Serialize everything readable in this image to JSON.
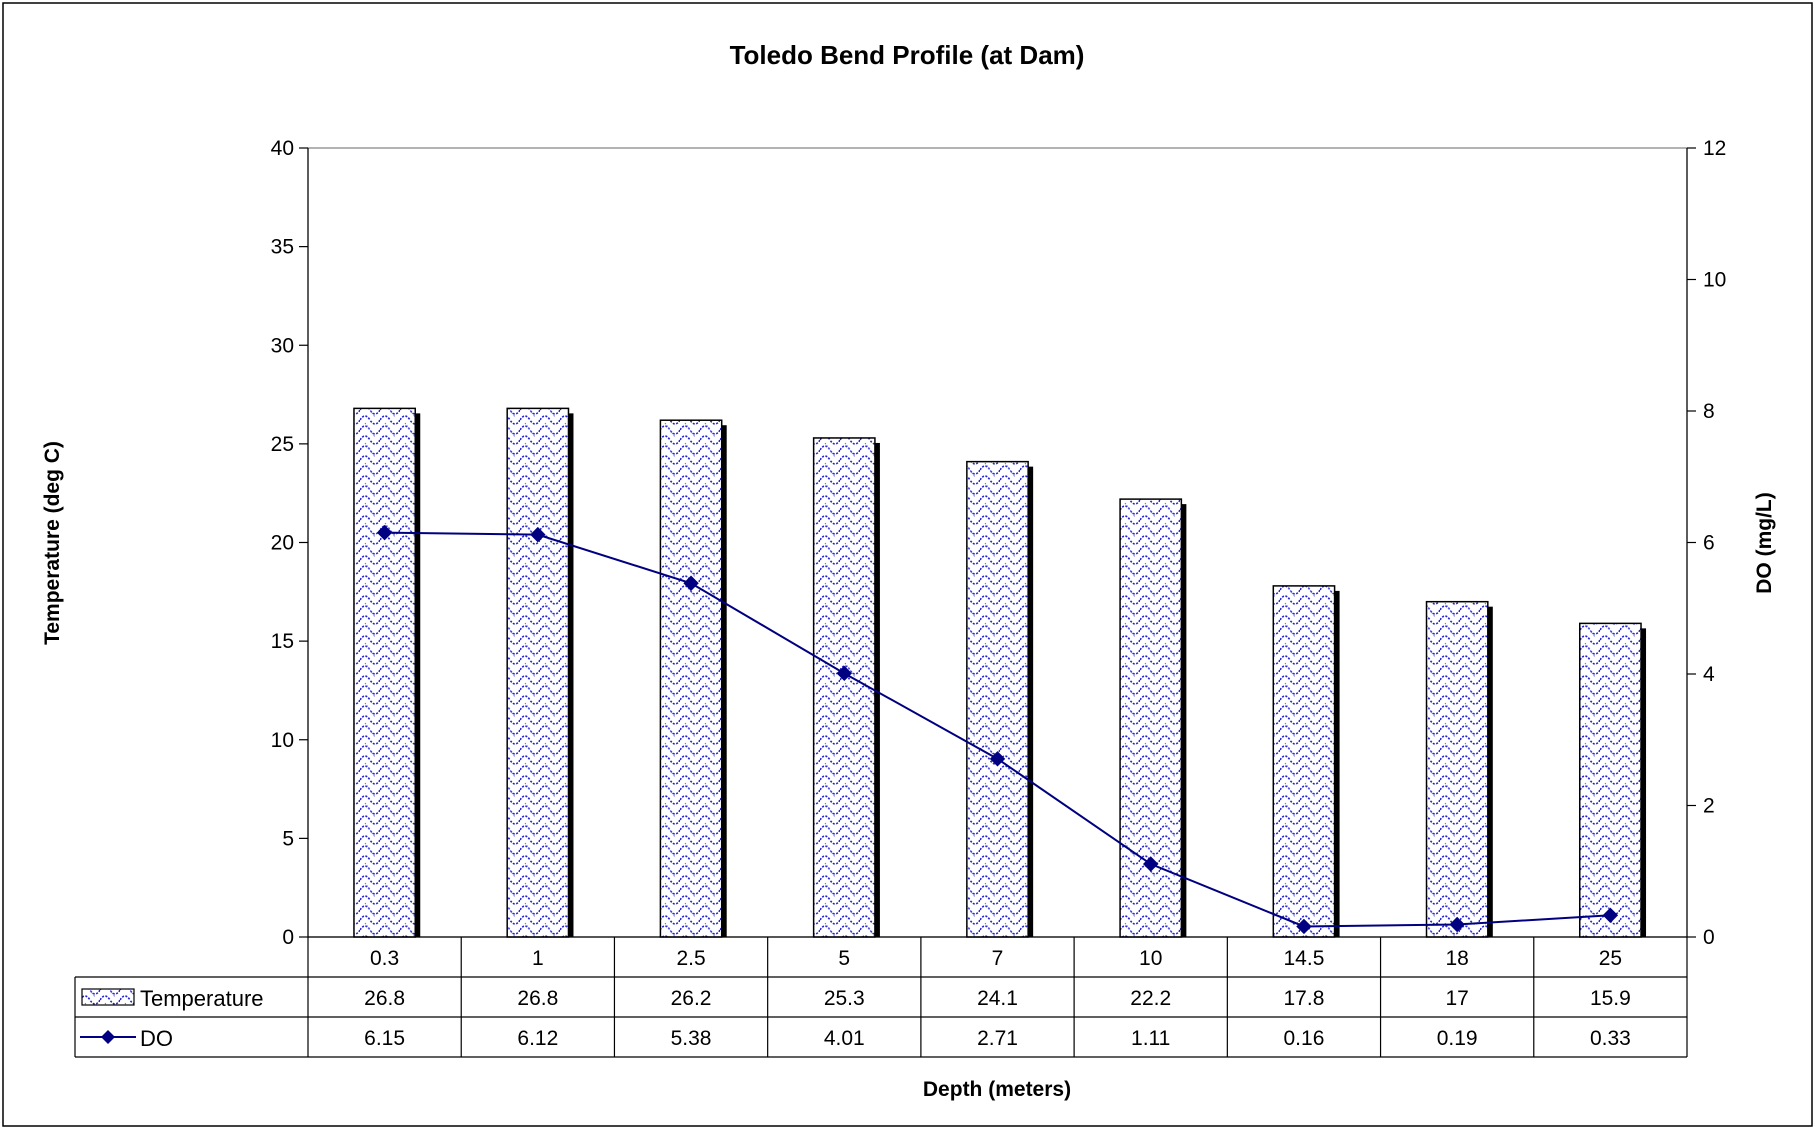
{
  "chart_data": {
    "type": "bar",
    "title": "Toledo Bend Profile (at Dam)",
    "xlabel": "Depth (meters)",
    "ylabel": "Temperature (deg C)",
    "y2label": "DO (mg/L)",
    "categories": [
      "0.3",
      "1",
      "2.5",
      "5",
      "7",
      "10",
      "14.5",
      "18",
      "25"
    ],
    "ylim": [
      0,
      40
    ],
    "yticks": [
      0,
      5,
      10,
      15,
      20,
      25,
      30,
      35,
      40
    ],
    "y2lim": [
      0,
      12
    ],
    "y2ticks": [
      0,
      2,
      4,
      6,
      8,
      10,
      12
    ],
    "grid": false,
    "legend": "data-table",
    "series": [
      {
        "name": "Temperature",
        "type": "bar",
        "axis": "left",
        "values": [
          26.8,
          26.8,
          26.2,
          25.3,
          24.1,
          22.2,
          17.8,
          17,
          15.9
        ],
        "labels": [
          "26.8",
          "26.8",
          "26.2",
          "25.3",
          "24.1",
          "22.2",
          "17.8",
          "17",
          "15.9"
        ],
        "color": "#2323cc"
      },
      {
        "name": "DO",
        "type": "line",
        "axis": "right",
        "values": [
          6.15,
          6.12,
          5.38,
          4.01,
          2.71,
          1.11,
          0.16,
          0.19,
          0.33
        ],
        "labels": [
          "6.15",
          "6.12",
          "5.38",
          "4.01",
          "2.71",
          "1.11",
          "0.16",
          "0.19",
          "0.33"
        ],
        "color": "#000080"
      }
    ]
  }
}
